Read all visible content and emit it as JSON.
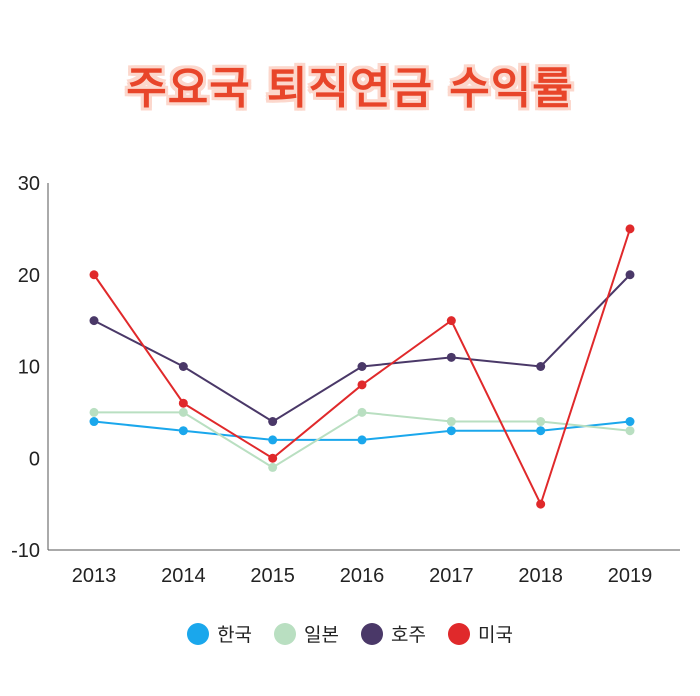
{
  "chart_data": {
    "type": "line",
    "title": "주요국 퇴직연금 수익률",
    "xlabel": "",
    "ylabel": "",
    "categories": [
      "2013",
      "2014",
      "2015",
      "2016",
      "2017",
      "2018",
      "2019"
    ],
    "ylim": [
      -10,
      30
    ],
    "yticks": [
      "30",
      "20",
      "10",
      "0",
      "-10"
    ],
    "legend_position": "bottom",
    "series": [
      {
        "name": "한국",
        "color": "#1aa7ec",
        "values": [
          4,
          3,
          2,
          2,
          3,
          3,
          4
        ]
      },
      {
        "name": "일본",
        "color": "#b9dfc1",
        "values": [
          5,
          5,
          -1,
          5,
          4,
          4,
          3
        ]
      },
      {
        "name": "호주",
        "color": "#4a3868",
        "values": [
          15,
          10,
          4,
          10,
          11,
          10,
          20
        ]
      },
      {
        "name": "미국",
        "color": "#e0292b",
        "values": [
          20,
          6,
          0,
          8,
          15,
          -5,
          25
        ]
      }
    ]
  }
}
